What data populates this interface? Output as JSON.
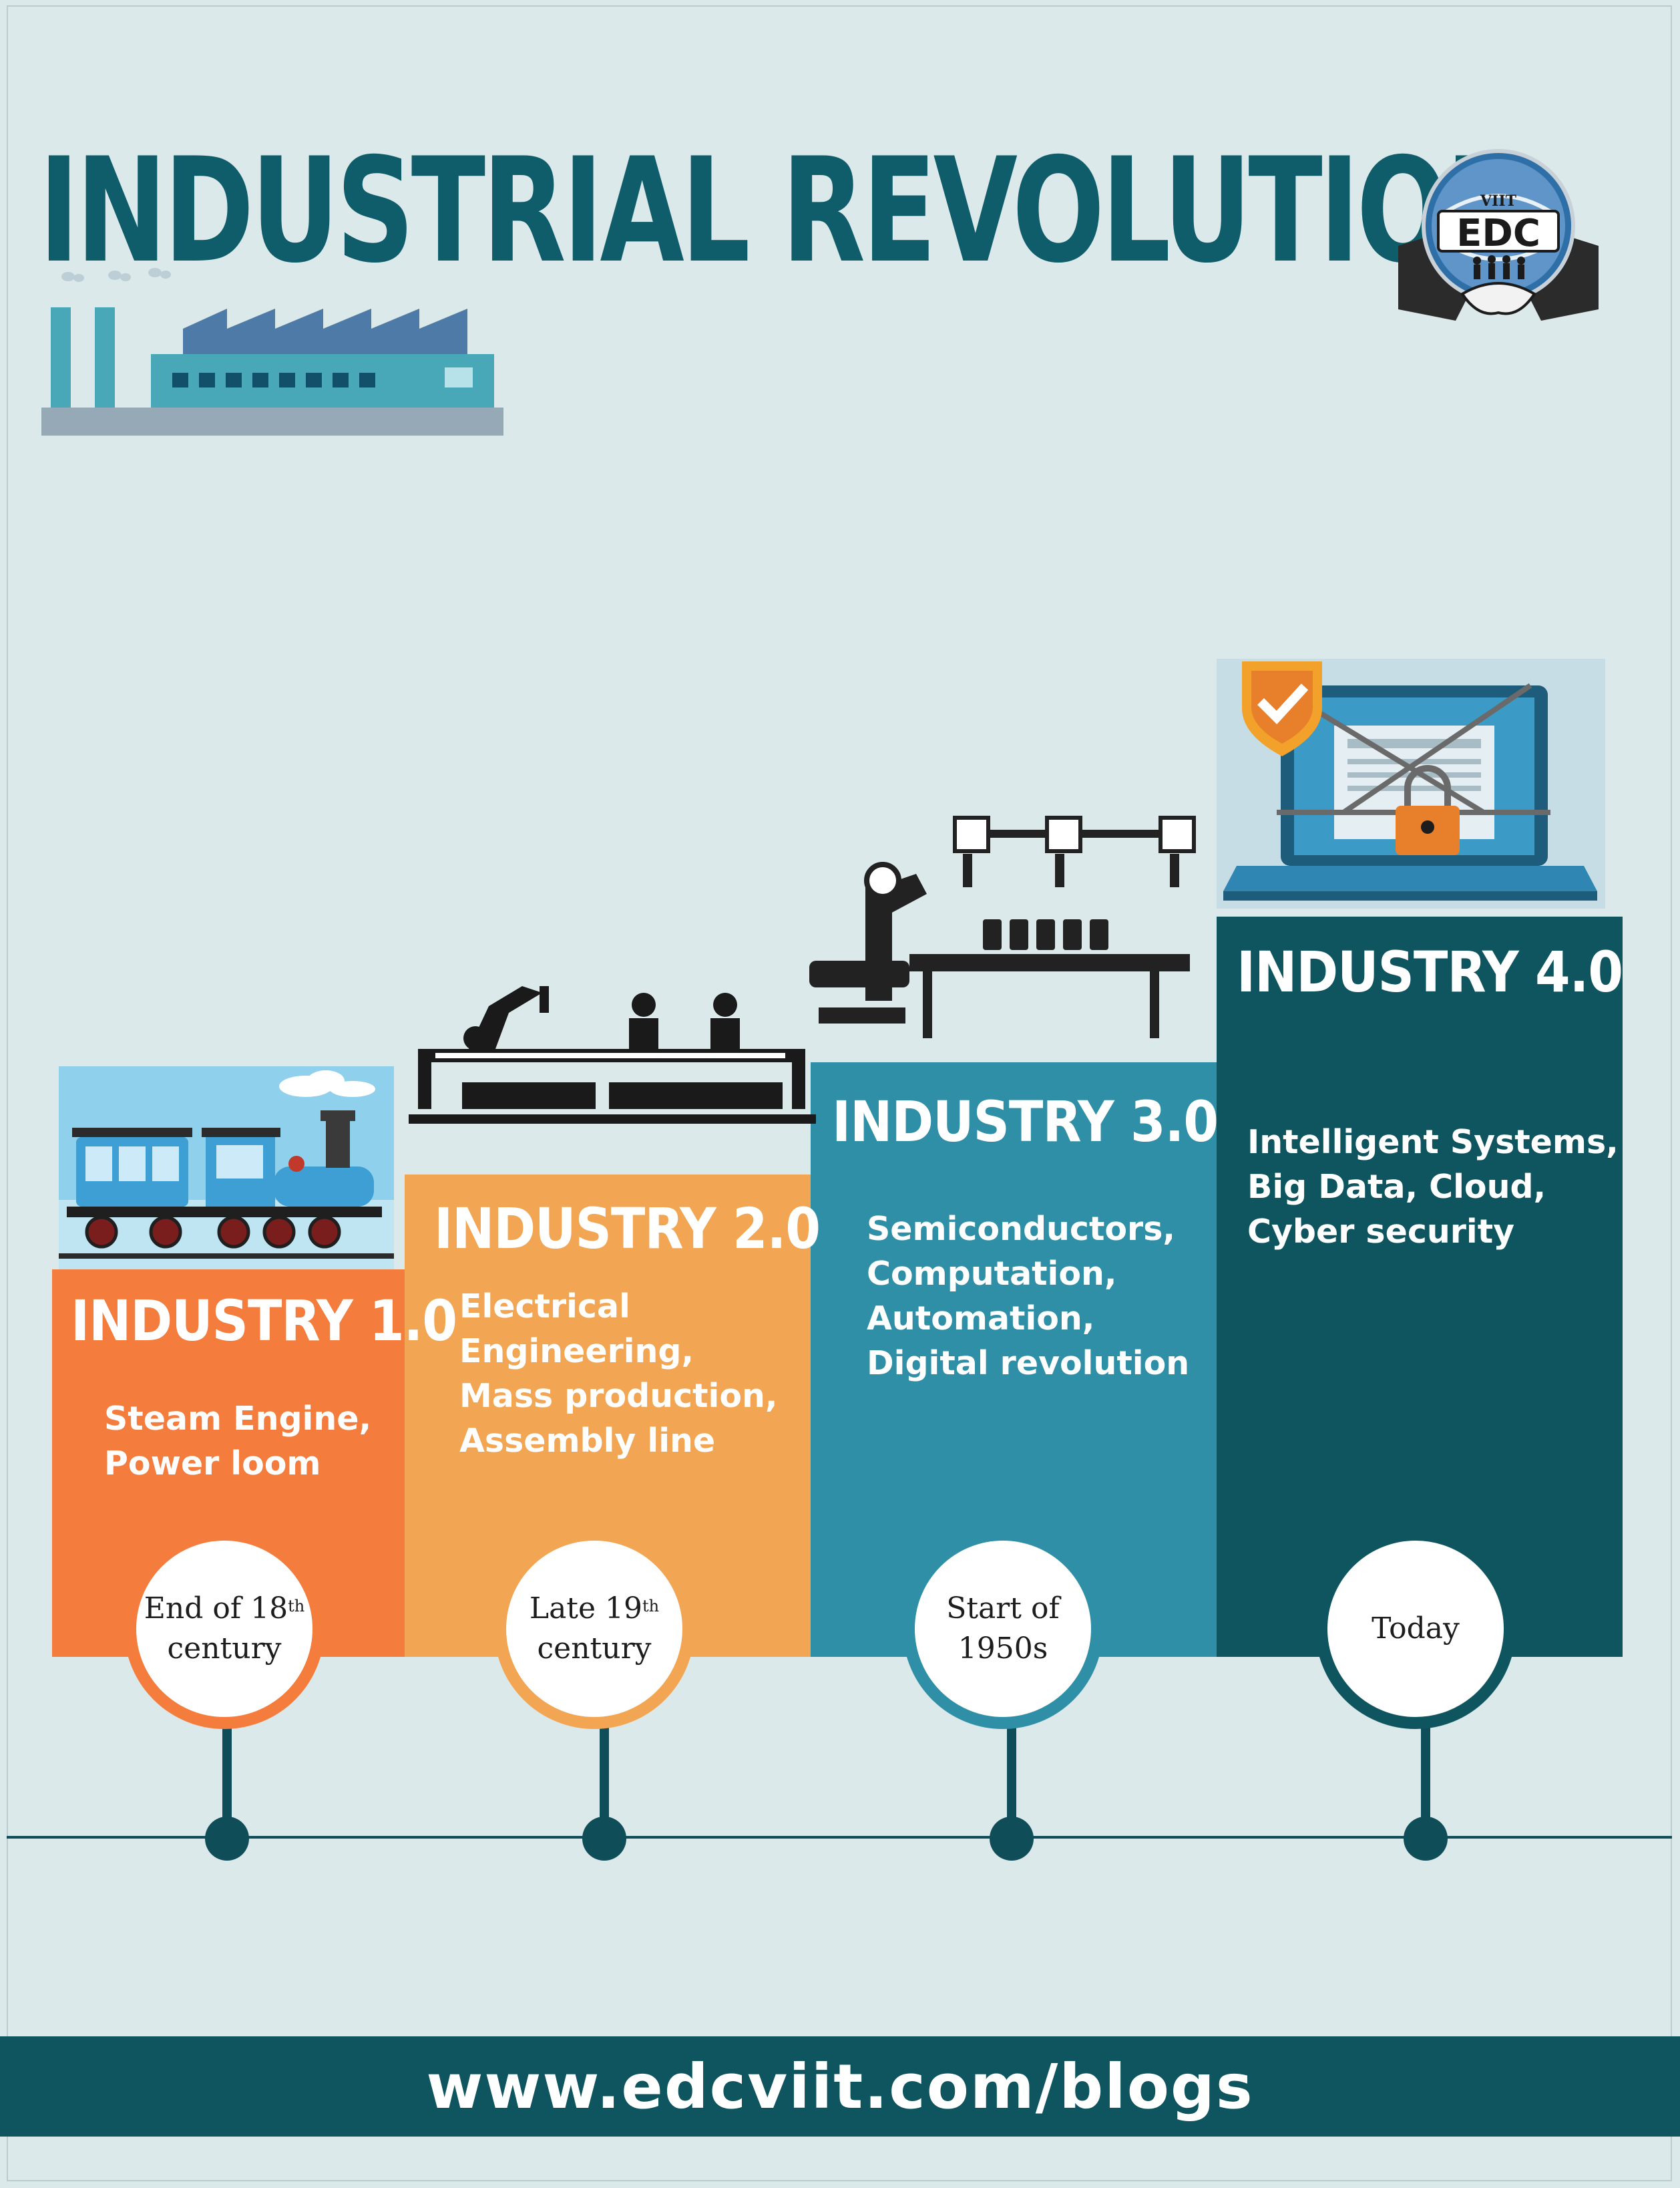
{
  "title": "INDUSTRIAL REVOLUTION",
  "logo": {
    "small_text": "VIIT",
    "text": "EDC"
  },
  "colors": {
    "background": "#dce9ea",
    "title": "#0f5d6b",
    "industry_1": "#f47d3e",
    "industry_2": "#f2a553",
    "industry_3": "#2f8fa6",
    "industry_4": "#0f5560",
    "timeline": "#0f4d58"
  },
  "stages": [
    {
      "heading": "INDUSTRY 1.0",
      "description": [
        "Steam Engine,",
        "Power loom"
      ],
      "era_line1": "End of 18",
      "era_sup": "th",
      "era_line2": "century",
      "icon": "steam-train-icon"
    },
    {
      "heading": "INDUSTRY 2.0",
      "description": [
        "Electrical",
        "Engineering,",
        "Mass production,",
        "Assembly line"
      ],
      "era_line1": "Late 19",
      "era_sup": "th",
      "era_line2": "century",
      "icon": "assembly-line-icon"
    },
    {
      "heading": "INDUSTRY 3.0",
      "description": [
        "Semiconductors,",
        "Computation,",
        "Automation,",
        "Digital revolution"
      ],
      "era_line1": "Start of",
      "era_sup": "",
      "era_line2": "1950s",
      "icon": "robotic-arm-icon"
    },
    {
      "heading": "INDUSTRY 4.0",
      "description": [
        "Intelligent Systems,",
        "Big Data, Cloud,",
        "Cyber security"
      ],
      "era_line1": "Today",
      "era_sup": "",
      "era_line2": "",
      "icon": "secure-laptop-icon"
    }
  ],
  "footer": {
    "url": "www.edcviit.com/blogs"
  }
}
